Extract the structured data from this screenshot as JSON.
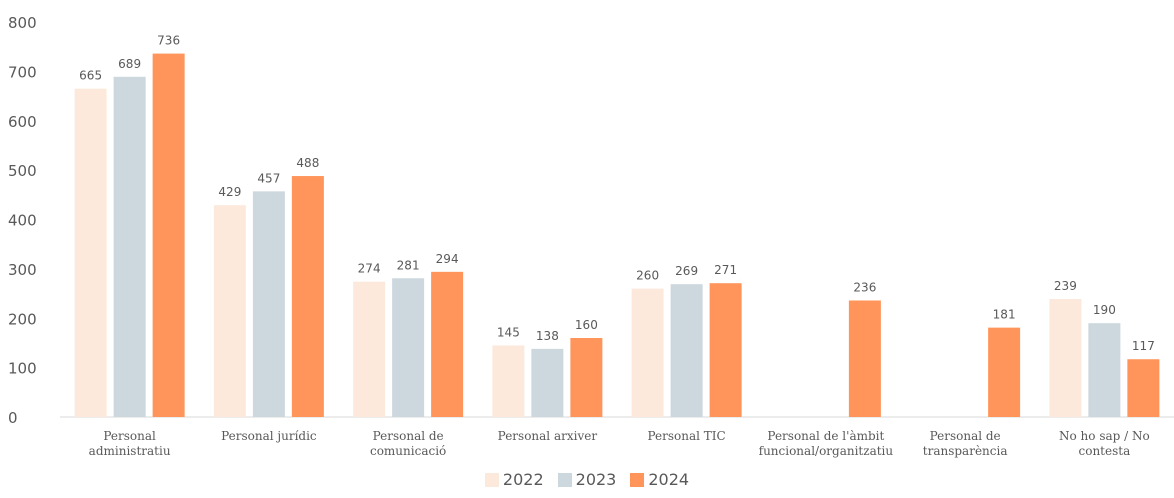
{
  "chart_data": {
    "type": "bar",
    "categories": [
      [
        "Personal",
        "administratiu"
      ],
      [
        "Personal jurídic"
      ],
      [
        "Personal de",
        "comunicació"
      ],
      [
        "Personal arxiver"
      ],
      [
        "Personal TIC"
      ],
      [
        "Personal de l'àmbit",
        "funcional/organitzatiu"
      ],
      [
        "Personal de",
        "transparència"
      ],
      [
        "No ho sap / No",
        "contesta"
      ]
    ],
    "series": [
      {
        "name": "2022",
        "color": "#fde9dc",
        "values": [
          665,
          429,
          274,
          145,
          260,
          null,
          null,
          239
        ]
      },
      {
        "name": "2023",
        "color": "#ccd8de",
        "values": [
          689,
          457,
          281,
          138,
          269,
          null,
          null,
          190
        ]
      },
      {
        "name": "2024",
        "color": "#ff955a",
        "values": [
          736,
          488,
          294,
          160,
          271,
          236,
          181,
          117
        ]
      }
    ],
    "ylim": [
      0,
      800
    ],
    "yticks": [
      0,
      100,
      200,
      300,
      400,
      500,
      600,
      700,
      800
    ],
    "grid": false,
    "legend_position": "bottom-center",
    "title": "",
    "xlabel": "",
    "ylabel": ""
  }
}
